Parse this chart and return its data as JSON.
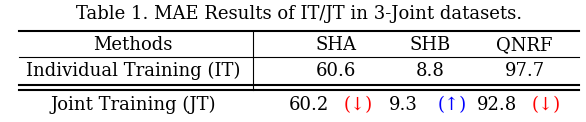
{
  "title": "Table 1. MAE Results of IT/JT in 3-Joint datasets.",
  "col_headers": [
    "Methods",
    "SHA",
    "SHB",
    "QNRF"
  ],
  "row1_label": "Individual Training (IT)",
  "row1_values": [
    "60.6",
    "8.8",
    "97.7"
  ],
  "row2_label": "Joint Training (JT)",
  "row2_values": [
    "60.2",
    "9.3",
    "92.8"
  ],
  "row2_arrows": [
    "↓",
    "↑",
    "↓"
  ],
  "row2_arrow_colors": [
    "red",
    "blue",
    "red"
  ],
  "bg_color": "white",
  "text_color": "black",
  "title_fontsize": 13,
  "header_fontsize": 13,
  "cell_fontsize": 13
}
